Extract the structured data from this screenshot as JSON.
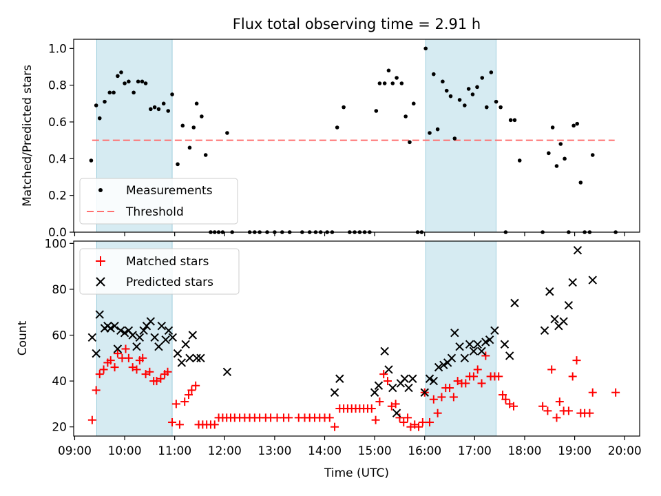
{
  "chart_data": [
    {
      "type": "scatter",
      "title": "Flux total observing time = 2.91 h",
      "xlabel": "",
      "ylabel": "Matched/Predicted stars",
      "xlim": [
        8.98,
        20.3
      ],
      "ylim": [
        0,
        1.05
      ],
      "yticks": [
        0.0,
        0.2,
        0.4,
        0.6,
        0.8,
        1.0
      ],
      "ytick_labels": [
        "0.0",
        "0.2",
        "0.4",
        "0.6",
        "0.8",
        "1.0"
      ],
      "shaded_spans": [
        [
          9.44,
          10.95
        ],
        [
          16.02,
          17.43
        ]
      ],
      "threshold": {
        "name": "Threshold",
        "value": 0.5,
        "x": [
          9.35,
          19.8
        ],
        "color": "#ff6f6f"
      },
      "legend_location": "lower-left",
      "series": [
        {
          "name": "Measurements",
          "color": "#000000",
          "x": [
            9.33,
            9.43,
            9.5,
            9.6,
            9.7,
            9.78,
            9.86,
            9.93,
            10.0,
            10.08,
            10.18,
            10.27,
            10.35,
            10.42,
            10.52,
            10.6,
            10.68,
            10.78,
            10.87,
            10.95,
            11.06,
            11.16,
            11.3,
            11.38,
            11.44,
            11.54,
            11.62,
            11.72,
            11.8,
            11.88,
            11.96,
            12.05,
            12.15,
            12.5,
            12.6,
            12.7,
            12.85,
            13.0,
            13.15,
            13.3,
            13.55,
            13.7,
            13.82,
            13.92,
            14.05,
            14.15,
            14.25,
            14.38,
            14.5,
            14.6,
            14.7,
            14.8,
            14.9,
            15.03,
            15.1,
            15.2,
            15.28,
            15.36,
            15.44,
            15.54,
            15.62,
            15.7,
            15.78,
            15.86,
            15.94,
            16.02,
            16.1,
            16.18,
            16.26,
            16.36,
            16.44,
            16.52,
            16.6,
            16.7,
            16.8,
            16.88,
            16.96,
            17.05,
            17.15,
            17.24,
            17.33,
            17.43,
            17.52,
            17.62,
            17.72,
            17.8,
            17.9,
            18.36,
            18.48,
            18.56,
            18.64,
            18.72,
            18.8,
            18.88,
            18.98,
            19.05,
            19.12,
            19.2,
            19.3,
            19.36,
            19.82
          ],
          "y": [
            0.39,
            0.69,
            0.62,
            0.71,
            0.76,
            0.76,
            0.85,
            0.87,
            0.81,
            0.82,
            0.76,
            0.82,
            0.82,
            0.81,
            0.67,
            0.68,
            0.67,
            0.7,
            0.66,
            0.75,
            0.37,
            0.58,
            0.46,
            0.57,
            0.7,
            0.63,
            0.42,
            0.0,
            0.0,
            0.0,
            0.0,
            0.54,
            0.0,
            0.0,
            0.0,
            0.0,
            0.0,
            0.0,
            0.0,
            0.0,
            0.0,
            0.0,
            0.0,
            0.0,
            0.0,
            0.0,
            0.57,
            0.68,
            0.0,
            0.0,
            0.0,
            0.0,
            0.0,
            0.66,
            0.81,
            0.81,
            0.88,
            0.81,
            0.84,
            0.81,
            0.63,
            0.49,
            0.7,
            0.0,
            0.0,
            1.0,
            0.54,
            0.86,
            0.56,
            0.82,
            0.77,
            0.74,
            0.51,
            0.72,
            0.69,
            0.78,
            0.75,
            0.79,
            0.84,
            0.68,
            0.87,
            0.71,
            0.68,
            0.0,
            0.61,
            0.61,
            0.39,
            0.0,
            0.43,
            0.57,
            0.36,
            0.48,
            0.4,
            0.0,
            0.58,
            0.59,
            0.27,
            0.0,
            0.0,
            0.42,
            0.0
          ]
        }
      ]
    },
    {
      "type": "scatter",
      "title": "",
      "xlabel": "Time (UTC)",
      "ylabel": "Count",
      "xlim": [
        8.98,
        20.3
      ],
      "ylim": [
        16,
        101
      ],
      "yticks": [
        20,
        40,
        60,
        80,
        100
      ],
      "ytick_labels": [
        "20",
        "40",
        "60",
        "80",
        "100"
      ],
      "xticks": [
        9,
        10,
        11,
        12,
        13,
        14,
        15,
        16,
        17,
        18,
        19,
        20
      ],
      "xtick_labels": [
        "09:00",
        "10:00",
        "11:00",
        "12:00",
        "13:00",
        "14:00",
        "15:00",
        "16:00",
        "17:00",
        "18:00",
        "19:00",
        "20:00"
      ],
      "shaded_spans": [
        [
          9.44,
          10.95
        ],
        [
          16.02,
          17.43
        ]
      ],
      "legend_location": "upper-left",
      "series": [
        {
          "name": "Matched stars",
          "marker": "+",
          "color": "#ff0000",
          "x": [
            9.35,
            9.43,
            9.5,
            9.58,
            9.66,
            9.72,
            9.8,
            9.86,
            9.95,
            10.02,
            10.08,
            10.16,
            10.24,
            10.3,
            10.36,
            10.42,
            10.5,
            10.58,
            10.64,
            10.72,
            10.8,
            10.86,
            10.95,
            11.03,
            11.1,
            11.2,
            11.28,
            11.34,
            11.42,
            11.48,
            11.56,
            11.64,
            11.72,
            11.8,
            11.88,
            11.96,
            12.04,
            12.12,
            12.2,
            12.3,
            12.4,
            12.5,
            12.6,
            12.7,
            12.82,
            12.92,
            13.05,
            13.18,
            13.28,
            13.48,
            13.6,
            13.7,
            13.8,
            13.9,
            14.0,
            14.1,
            14.2,
            14.3,
            14.38,
            14.46,
            14.54,
            14.62,
            14.7,
            14.78,
            14.86,
            14.94,
            15.02,
            15.1,
            15.18,
            15.26,
            15.34,
            15.42,
            15.5,
            15.58,
            15.66,
            15.72,
            15.8,
            15.88,
            15.96,
            16.0,
            16.1,
            16.18,
            16.26,
            16.34,
            16.42,
            16.5,
            16.58,
            16.66,
            16.74,
            16.82,
            16.9,
            16.98,
            17.06,
            17.14,
            17.22,
            17.32,
            17.4,
            17.48,
            17.56,
            17.62,
            17.7,
            17.78,
            18.36,
            18.46,
            18.54,
            18.64,
            18.7,
            18.78,
            18.88,
            18.96,
            19.04,
            19.12,
            19.2,
            19.3,
            19.36,
            19.82
          ],
          "y": [
            23,
            36,
            43,
            45,
            48,
            49,
            46,
            52,
            50,
            54,
            50,
            46,
            45,
            49,
            50,
            43,
            44,
            40,
            40,
            41,
            43,
            44,
            22,
            30,
            21,
            31,
            34,
            36,
            38,
            21,
            21,
            21,
            21,
            21,
            24,
            24,
            24,
            24,
            24,
            24,
            24,
            24,
            24,
            24,
            24,
            24,
            24,
            24,
            24,
            24,
            24,
            24,
            24,
            24,
            24,
            24,
            20,
            28,
            28,
            28,
            28,
            28,
            28,
            28,
            28,
            28,
            23,
            31,
            43,
            40,
            29,
            30,
            24,
            22,
            24,
            20,
            21,
            20,
            22,
            35,
            22,
            32,
            26,
            33,
            37,
            37,
            33,
            40,
            39,
            39,
            42,
            42,
            45,
            39,
            51,
            42,
            42,
            42,
            34,
            32,
            30,
            29,
            29,
            27,
            45,
            24,
            31,
            27,
            27,
            42,
            49,
            26,
            26,
            26,
            35,
            35
          ]
        },
        {
          "name": "Predicted stars",
          "marker": "x",
          "color": "#000000",
          "x": [
            9.35,
            9.43,
            9.5,
            9.6,
            9.66,
            9.72,
            9.8,
            9.86,
            9.92,
            10.0,
            10.08,
            10.16,
            10.24,
            10.3,
            10.38,
            10.44,
            10.52,
            10.6,
            10.68,
            10.74,
            10.82,
            10.88,
            10.96,
            11.06,
            11.14,
            11.22,
            11.3,
            11.36,
            11.44,
            11.52,
            12.05,
            14.2,
            14.3,
            15.0,
            15.08,
            15.2,
            15.28,
            15.36,
            15.44,
            15.52,
            15.6,
            15.68,
            15.76,
            16.0,
            16.1,
            16.18,
            16.28,
            16.38,
            16.46,
            16.54,
            16.6,
            16.7,
            16.8,
            16.9,
            16.98,
            17.06,
            17.14,
            17.22,
            17.3,
            17.4,
            17.6,
            17.7,
            17.8,
            18.4,
            18.5,
            18.6,
            18.68,
            18.78,
            18.88,
            18.96,
            19.06,
            19.36
          ],
          "y": [
            59,
            52,
            69,
            63,
            64,
            63,
            64,
            54,
            62,
            61,
            62,
            60,
            55,
            59,
            62,
            64,
            66,
            59,
            55,
            64,
            58,
            62,
            59,
            52,
            48,
            56,
            50,
            60,
            50,
            50,
            44,
            35,
            41,
            35,
            38,
            53,
            45,
            37,
            26,
            39,
            41,
            37,
            41,
            35,
            41,
            40,
            46,
            47,
            48,
            50,
            61,
            55,
            50,
            56,
            53,
            56,
            53,
            57,
            58,
            62,
            56,
            51,
            74,
            62,
            79,
            67,
            64,
            66,
            73,
            83,
            97,
            84
          ]
        }
      ]
    }
  ]
}
